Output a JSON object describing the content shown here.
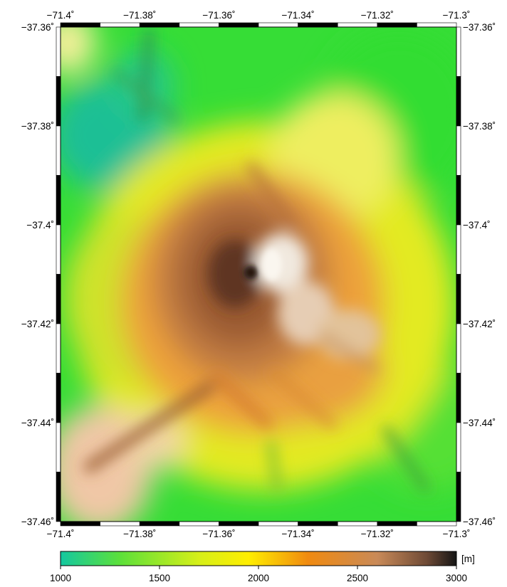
{
  "map": {
    "kind": "shaded-relief elevation map",
    "longitude_ticks": [
      "−71.4˚",
      "−71.38˚",
      "−71.36˚",
      "−71.34˚",
      "−71.32˚",
      "−71.3˚"
    ],
    "latitude_ticks": [
      "−37.36˚",
      "−37.38˚",
      "−37.4˚",
      "−37.42˚",
      "−37.44˚",
      "−37.46˚"
    ],
    "lon_range": [
      -71.4,
      -71.3
    ],
    "lat_range": [
      -37.46,
      -37.36
    ],
    "feature": "volcanic summit with crater, elevation rising toward center",
    "colors": {
      "low": "#1cc3a6",
      "green": "#33dd33",
      "yellow": "#ffee22",
      "orange": "#f08a1a",
      "brown": "#8a4a22",
      "snow": "#f4eee6"
    }
  },
  "colorbar": {
    "unit_label": "[m]",
    "tick_labels": [
      "1000",
      "1500",
      "2000",
      "2500",
      "3000"
    ],
    "range": [
      1000,
      3000
    ],
    "stops": [
      {
        "value": 1000,
        "color": "#14c8a0"
      },
      {
        "value": 1300,
        "color": "#5ce03a"
      },
      {
        "value": 1700,
        "color": "#d6ef18"
      },
      {
        "value": 1950,
        "color": "#ffee00"
      },
      {
        "value": 2250,
        "color": "#f08a10"
      },
      {
        "value": 2600,
        "color": "#c98a58"
      },
      {
        "value": 2850,
        "color": "#6e4a36"
      },
      {
        "value": 3000,
        "color": "#151515"
      }
    ]
  }
}
